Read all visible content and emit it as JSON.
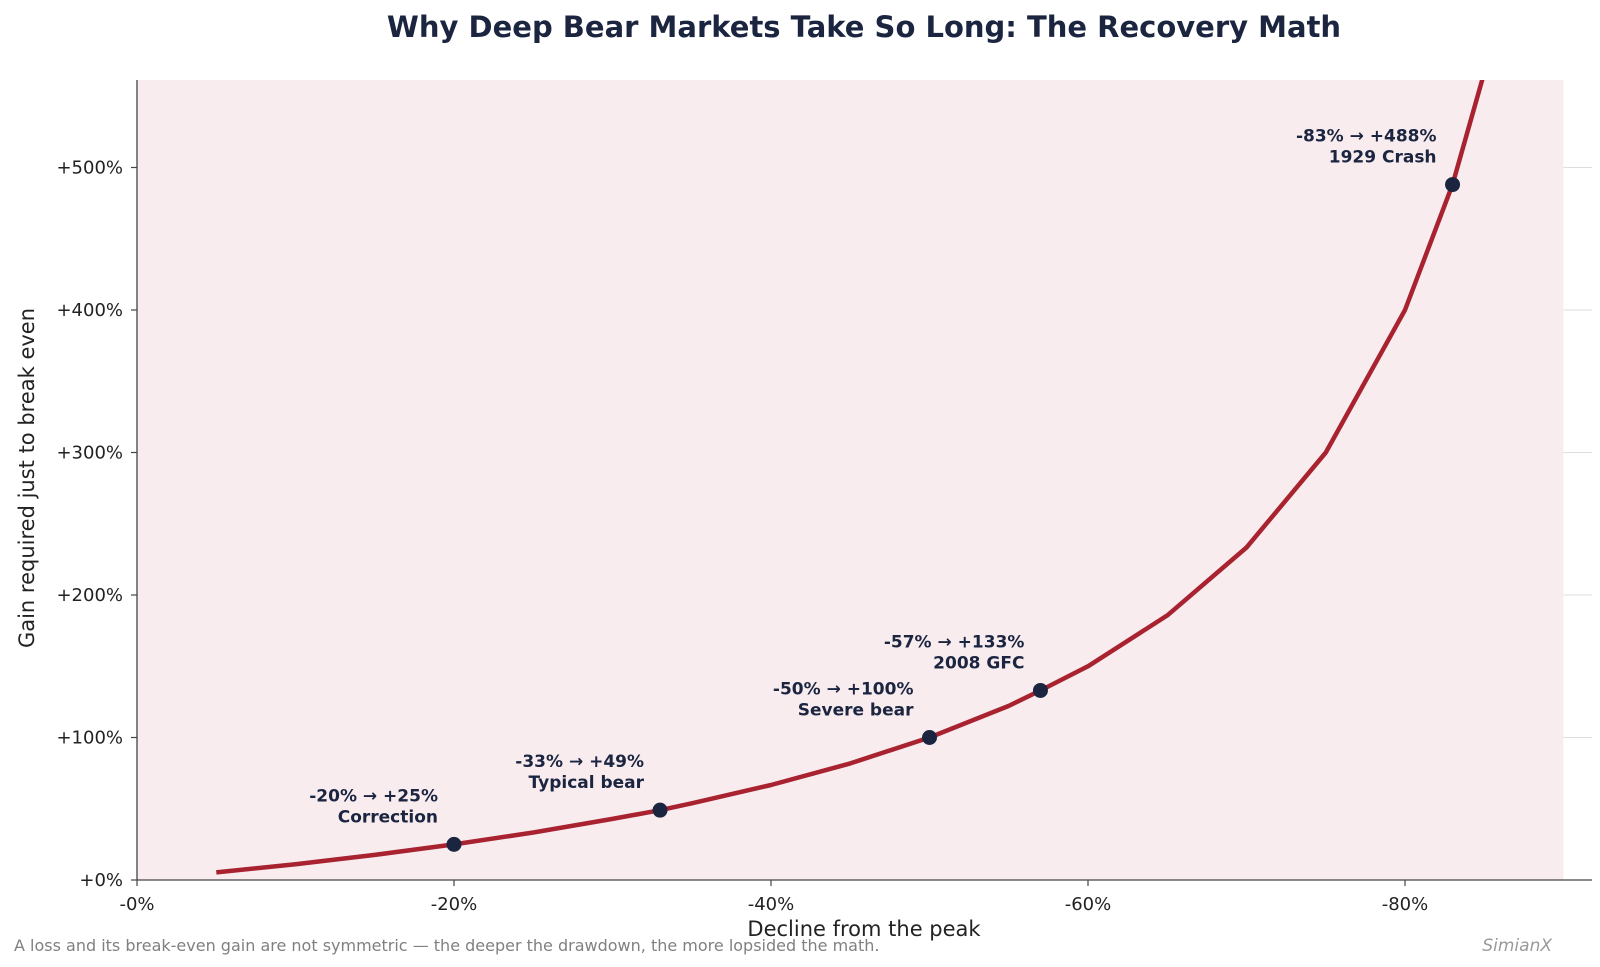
{
  "chart_data": {
    "type": "line",
    "title": "Why Deep Bear Markets Take So Long: The Recovery Math",
    "xlabel": "Decline from the peak",
    "ylabel": "Gain required just to break even",
    "xlim": [
      0,
      -92
    ],
    "ylim": [
      0,
      560
    ],
    "x_ticks": [
      0,
      -20,
      -40,
      -60,
      -80
    ],
    "x_tick_labels": [
      "-0%",
      "-20%",
      "-40%",
      "-60%",
      "-80%"
    ],
    "y_ticks": [
      0,
      100,
      200,
      300,
      400,
      500
    ],
    "y_tick_labels": [
      "+0%",
      "+100%",
      "+200%",
      "+300%",
      "+400%",
      "+500%"
    ],
    "grid": true,
    "line_color": "#a8232f",
    "fill_color": "#f8ecef",
    "marker_color": "#1b2540",
    "series": [
      {
        "x": [
          -5,
          -10,
          -15,
          -20,
          -25,
          -30,
          -33,
          -35,
          -40,
          -45,
          -50,
          -55,
          -57,
          -60,
          -65,
          -70,
          -75,
          -80,
          -83,
          -85
        ],
        "values": [
          5.3,
          11.1,
          17.6,
          25,
          33.3,
          42.9,
          49,
          53.8,
          66.7,
          81.8,
          100,
          122.2,
          133,
          150,
          185.7,
          233.3,
          300,
          400,
          488,
          566.7
        ]
      }
    ],
    "shaded_region": {
      "x_start": 0,
      "x_end": -90
    },
    "highlights": [
      {
        "x": -20,
        "y": 25,
        "label_line1": "-20% → +25%",
        "label_line2": "Correction"
      },
      {
        "x": -33,
        "y": 49,
        "label_line1": "-33% → +49%",
        "label_line2": "Typical bear"
      },
      {
        "x": -50,
        "y": 100,
        "label_line1": "-50% → +100%",
        "label_line2": "Severe bear"
      },
      {
        "x": -57,
        "y": 133,
        "label_line1": "-57% → +133%",
        "label_line2": "2008 GFC"
      },
      {
        "x": -83,
        "y": 488,
        "label_line1": "-83% → +488%",
        "label_line2": "1929 Crash"
      }
    ]
  },
  "footer": {
    "note": "A loss and its break-even gain are not symmetric — the deeper the drawdown, the more lopsided the math.",
    "brand": "SimianX"
  }
}
